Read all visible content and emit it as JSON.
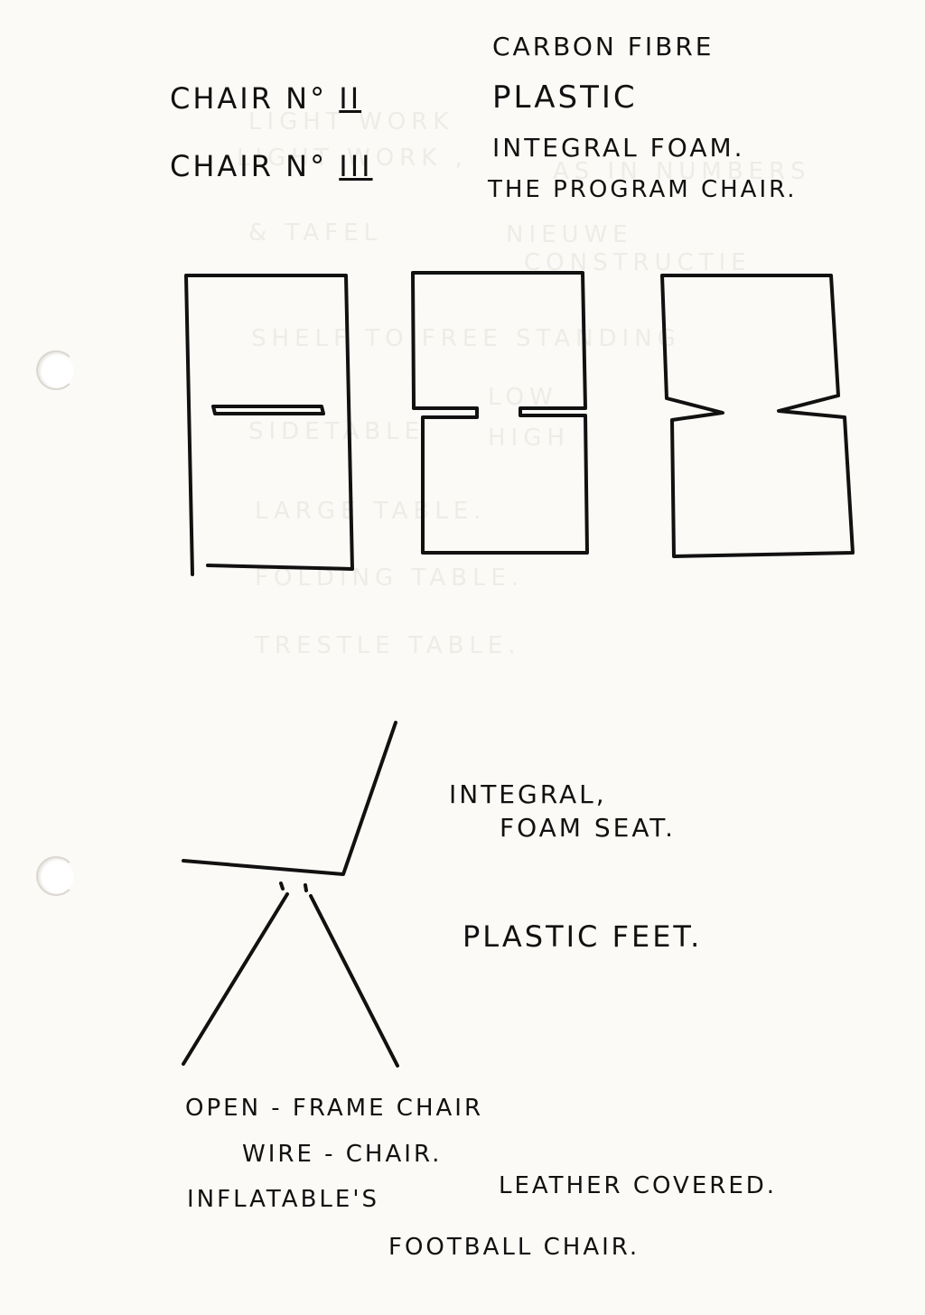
{
  "notes": {
    "carbon_fibre": "CARBON FIBRE",
    "chair_2": "CHAIR N°",
    "chair_2_num": "II",
    "plastic": "PLASTIC",
    "chair_3": "CHAIR N°",
    "chair_3_num": "III",
    "integral_foam": "INTEGRAL FOAM.",
    "program_chair": "THE PROGRAM CHAIR.",
    "integral": "INTEGRAL,",
    "foam_seat": "FOAM SEAT.",
    "plastic_feet": "PLASTIC FEET.",
    "open_frame": "OPEN - FRAME CHAIR",
    "wire_chair": "WIRE - CHAIR.",
    "inflatables": "INFLATABLE'S",
    "leather_covered": "LEATHER COVERED.",
    "football_chair": "FOOTBALL CHAIR."
  },
  "show_through": {
    "line1": "LIGHT WORK",
    "line2": "LIGHT WORK ,",
    "line3": "AS IN NUMBERS",
    "line4": "& TAFEL",
    "line5": "NIEUWE",
    "line6": "CONSTRUCTIE",
    "line7": "SHELF TO FREE STANDING",
    "line8": "LOW",
    "line9": "SIDETABLE",
    "line10": "HIGH",
    "line11": "LARGE TABLE.",
    "line12": "FOLDING TABLE.",
    "line13": "TRESTLE TABLE."
  },
  "colors": {
    "ink": "#111111",
    "paper": "#fbfaf6",
    "ghost": "#eeece6"
  }
}
